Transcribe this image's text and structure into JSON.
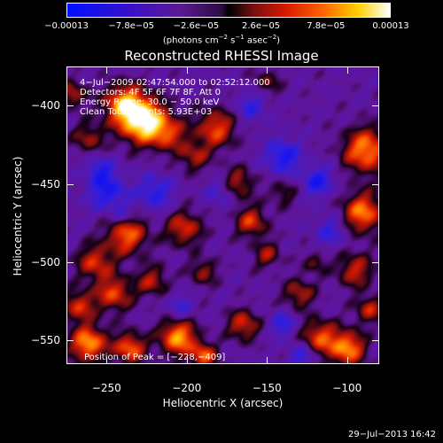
{
  "chart_data": {
    "type": "heatmap",
    "title": "Reconstructed RHESSI Image",
    "xlabel": "Heliocentric X (arcsec)",
    "ylabel": "Heliocentric Y (arcsec)",
    "xlim": [
      -275,
      -80
    ],
    "ylim": [
      -565,
      -375
    ],
    "x_ticks": [
      -250,
      -200,
      -150,
      -100
    ],
    "x_tick_labels": [
      "−250",
      "−200",
      "−150",
      "−100"
    ],
    "y_ticks": [
      -400,
      -450,
      -500,
      -550
    ],
    "y_tick_labels": [
      "−400",
      "−450",
      "−500",
      "−550"
    ],
    "colorbar": {
      "tick_labels": [
        "−0.00013",
        "−7.8e−05",
        "−2.6e−05",
        "2.6e−05",
        "7.8e−05",
        "0.00013"
      ],
      "tick_values": [
        -0.00013,
        -7.8e-05,
        -2.6e-05,
        2.6e-05,
        7.8e-05,
        0.00013
      ],
      "range": [
        -0.00013,
        0.00013
      ],
      "units_prefix": "(photons cm",
      "units_exp1": "−2",
      "units_mid": " s",
      "units_exp2": "−1",
      "units_mid2": " asec",
      "units_exp3": "−2",
      "units_suffix": ")"
    },
    "annotations": {
      "time_range": "4−Jul−2009 02:47:54.000 to 02:52:12.000",
      "detectors": "Detectors: 4F 5F 6F 7F 8F, Att 0",
      "energy": "Energy Range: 30.0 − 50.0 keV",
      "clean": "Clean    Total Counts: 5.93E+03",
      "peak": "Position of Peak = [−228,−409]"
    },
    "peak_position": [
      -228,
      -409
    ]
  },
  "footer": {
    "date": "29−Jul−2013 16:42"
  }
}
